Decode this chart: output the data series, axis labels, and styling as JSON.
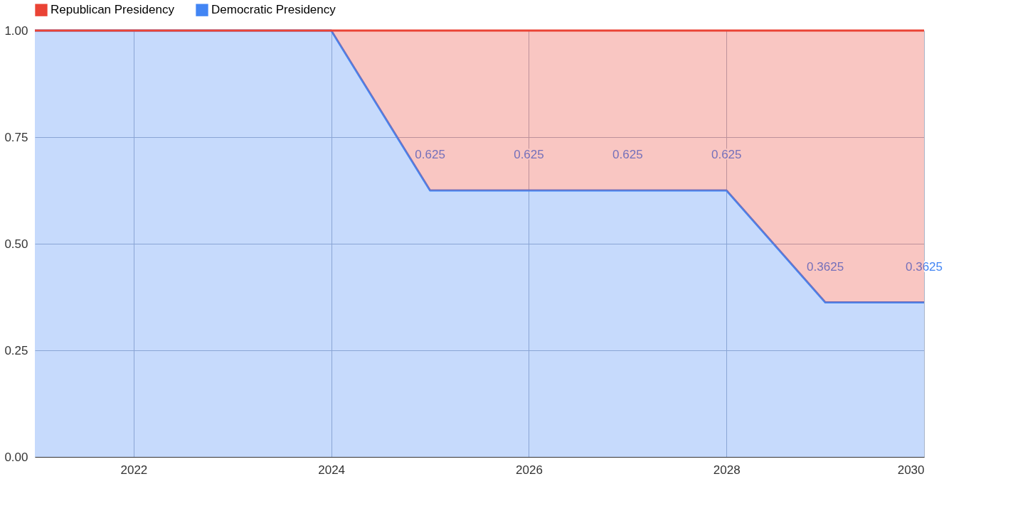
{
  "chart_data": {
    "type": "area",
    "stacked": true,
    "x": [
      2021,
      2022,
      2023,
      2024,
      2025,
      2026,
      2027,
      2028,
      2029,
      2030
    ],
    "series": [
      {
        "name": "Democratic Presidency",
        "color": "#4285f4",
        "values": [
          1,
          1,
          1,
          1,
          0.625,
          0.625,
          0.625,
          0.625,
          0.3625,
          0.3625
        ],
        "value_labels": [
          null,
          null,
          null,
          null,
          "0.625",
          "0.625",
          "0.625",
          "0.625",
          "0.3625",
          "0.3625"
        ]
      },
      {
        "name": "Republican Presidency",
        "color": "#ea4335",
        "values": [
          0,
          0,
          0,
          0,
          0.375,
          0.375,
          0.375,
          0.375,
          0.6375,
          0.6375
        ]
      }
    ],
    "xlim": [
      2021,
      2030
    ],
    "xticks": [
      2022,
      2024,
      2026,
      2028,
      2030
    ],
    "ylim": [
      0,
      1
    ],
    "yticks": [
      {
        "value": 0,
        "label": "0.00"
      },
      {
        "value": 0.25,
        "label": "0.25"
      },
      {
        "value": 0.5,
        "label": "0.50"
      },
      {
        "value": 0.75,
        "label": "0.75"
      },
      {
        "value": 1,
        "label": "1.00"
      }
    ],
    "grid": true,
    "legend": "top"
  }
}
